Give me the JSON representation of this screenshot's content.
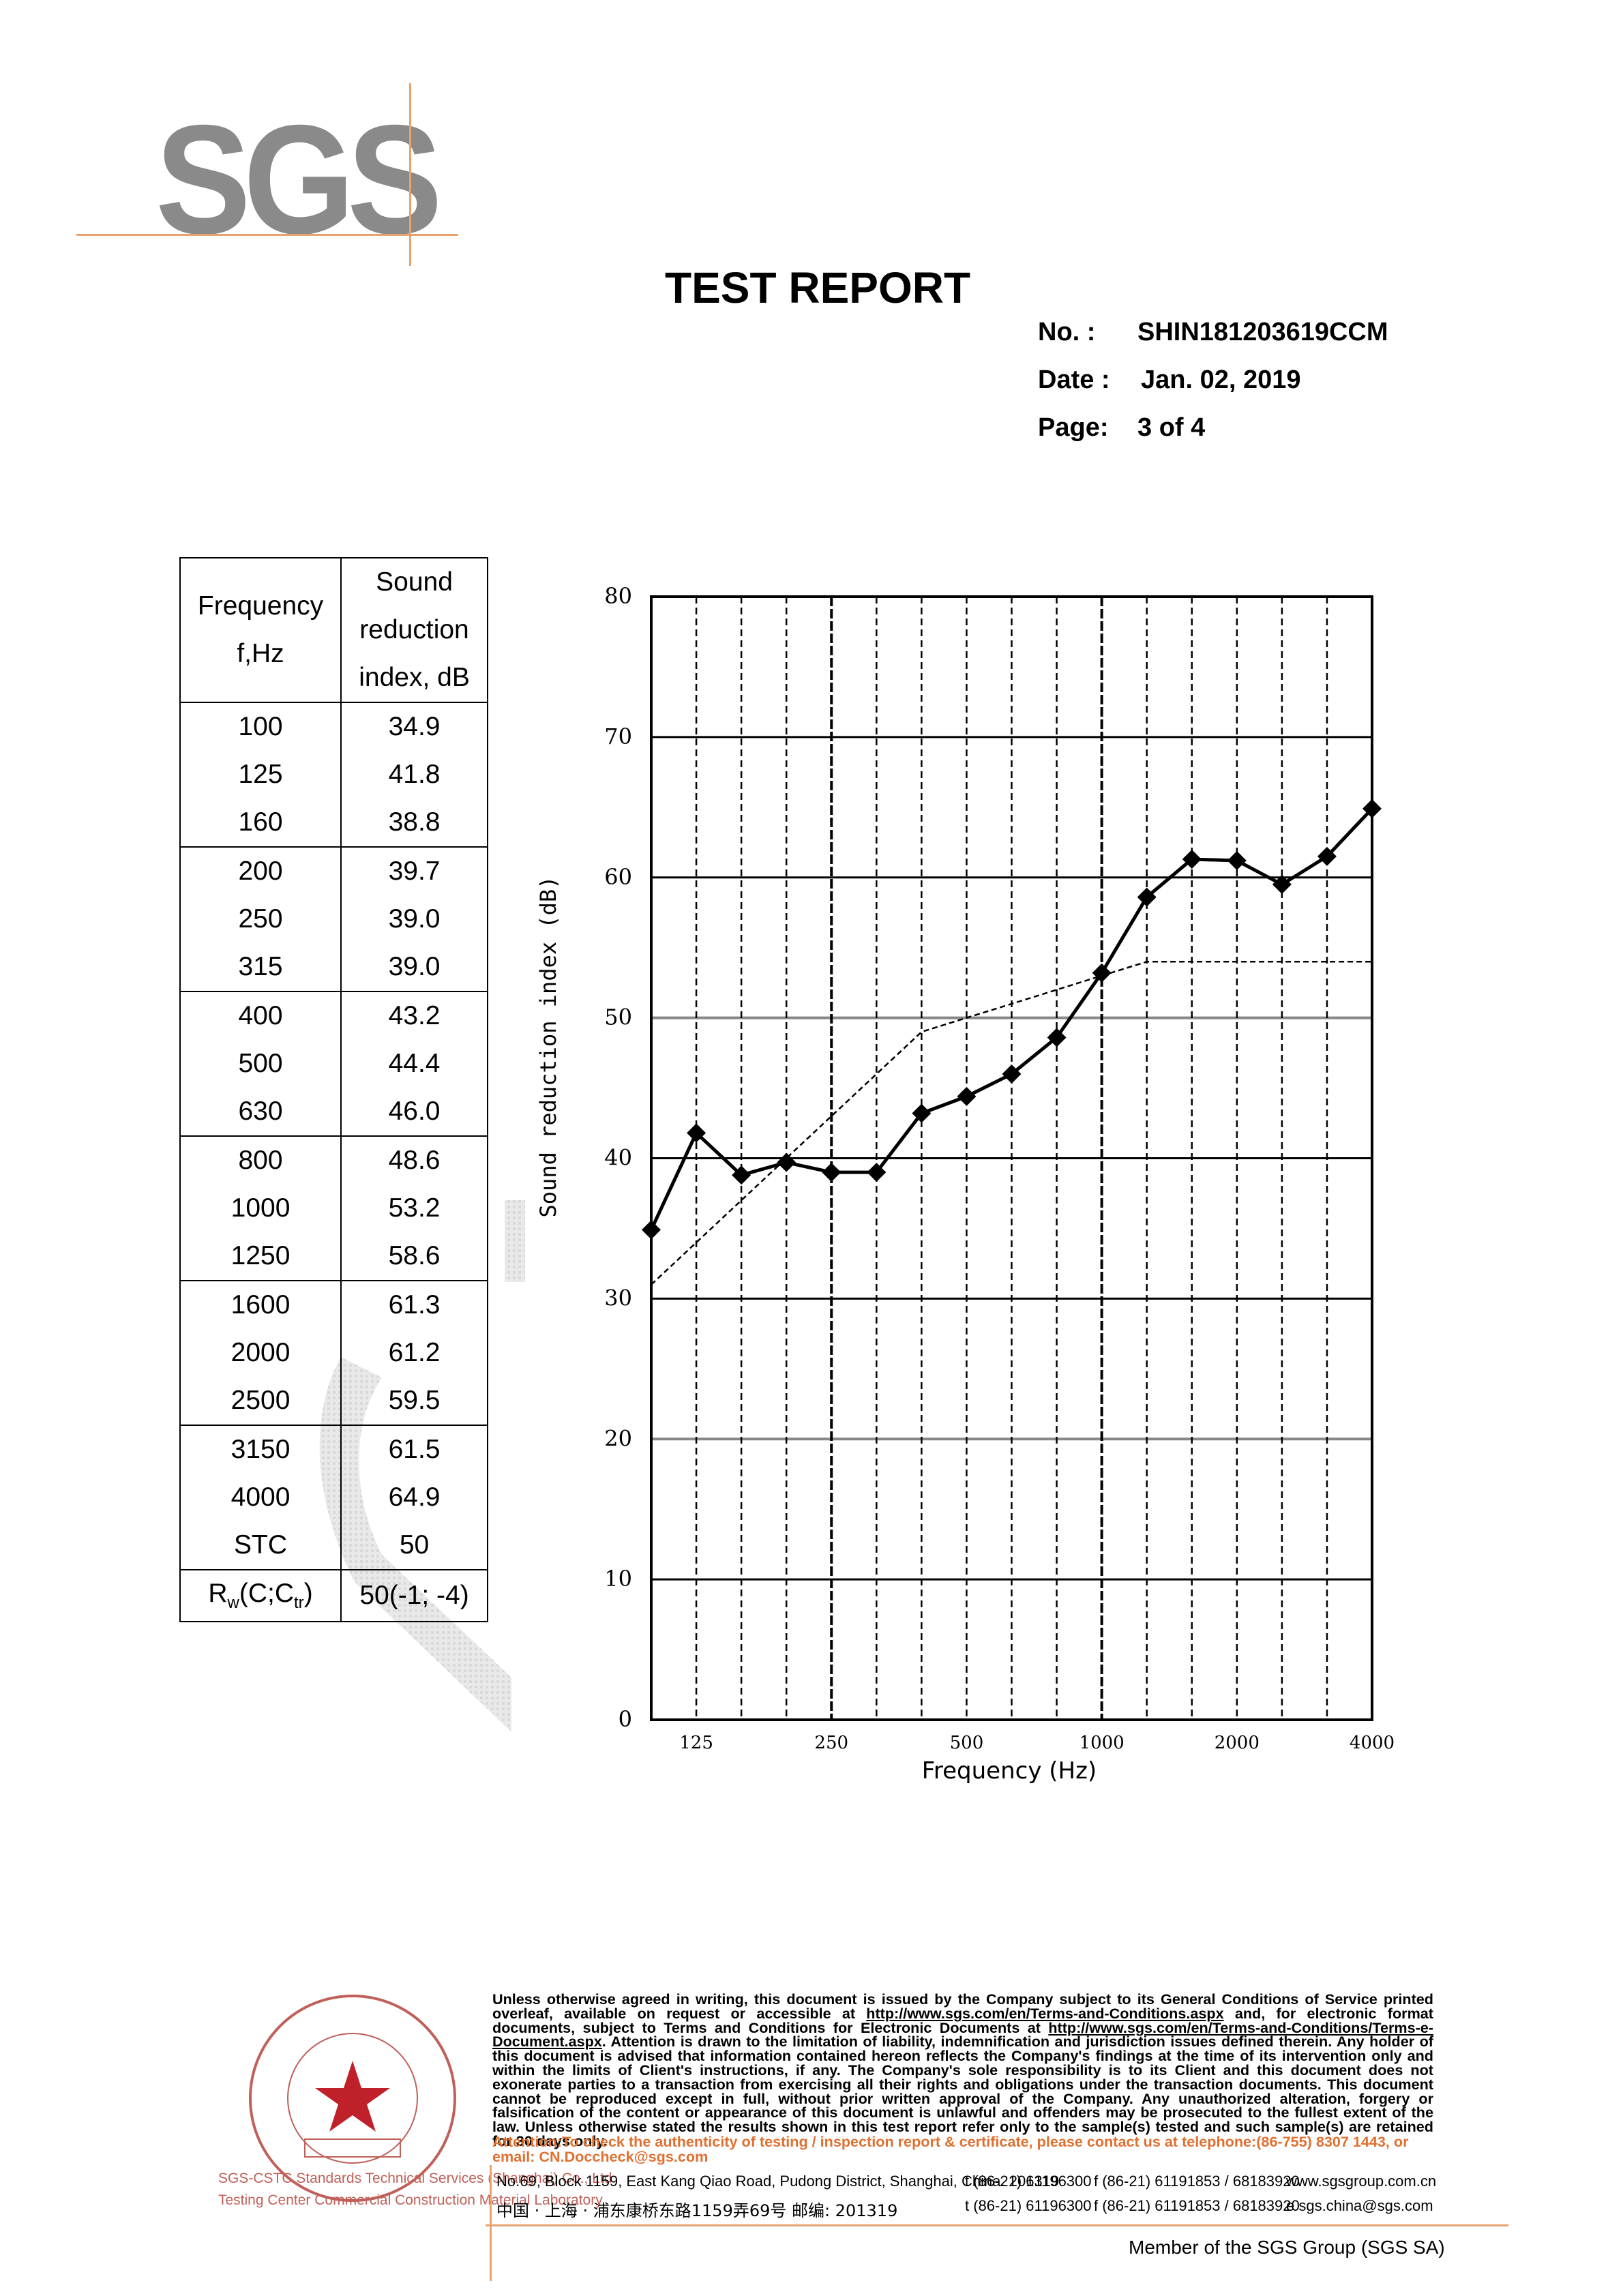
{
  "logo": {
    "text": "SGS"
  },
  "header": {
    "title": "TEST REPORT",
    "no_label": "No.   :",
    "no_value": "SHIN181203619CCM",
    "date_label": "Date :",
    "date_value": "Jan. 02, 2019",
    "page_label": "Page:",
    "page_value": "3 of  4"
  },
  "table": {
    "header_freq_lines": [
      "Frequency",
      "f,Hz"
    ],
    "header_val_lines": [
      "Sound",
      "reduction",
      "index, dB"
    ],
    "groups": [
      {
        "freq": [
          "100",
          "125",
          "160"
        ],
        "val": [
          "34.9",
          "41.8",
          "38.8"
        ]
      },
      {
        "freq": [
          "200",
          "250",
          "315"
        ],
        "val": [
          "39.7",
          "39.0",
          "39.0"
        ]
      },
      {
        "freq": [
          "400",
          "500",
          "630"
        ],
        "val": [
          "43.2",
          "44.4",
          "46.0"
        ]
      },
      {
        "freq": [
          "800",
          "1000",
          "1250"
        ],
        "val": [
          "48.6",
          "53.2",
          "58.6"
        ]
      },
      {
        "freq": [
          "1600",
          "2000",
          "2500"
        ],
        "val": [
          "61.3",
          "61.2",
          "59.5"
        ]
      },
      {
        "freq": [
          "3150",
          "4000",
          "STC"
        ],
        "val": [
          "61.5",
          "64.9",
          "50"
        ]
      }
    ],
    "rw_label_main": "R",
    "rw_label_sub1": "w",
    "rw_label_mid": "(C;C",
    "rw_label_sub2": "tr",
    "rw_label_end": ")",
    "rw_value": "50(-1; -4)"
  },
  "chart_data": {
    "type": "line",
    "xlabel": "Frequency (Hz)",
    "ylabel": "Sound reduction index (dB)",
    "ylim": [
      0,
      80
    ],
    "yticks": [
      0,
      10,
      20,
      30,
      40,
      50,
      60,
      70,
      80
    ],
    "x_tick_labels": [
      "125",
      "250",
      "500",
      "1000",
      "2000",
      "4000"
    ],
    "x": [
      100,
      125,
      160,
      200,
      250,
      315,
      400,
      500,
      630,
      800,
      1000,
      1250,
      1600,
      2000,
      2500,
      3150,
      4000
    ],
    "series": [
      {
        "values": [
          34.9,
          41.8,
          38.8,
          39.7,
          39.0,
          39.0,
          43.2,
          44.4,
          46.0,
          48.6,
          53.2,
          58.6,
          61.3,
          61.2,
          59.5,
          61.5,
          64.9
        ]
      },
      {
        "values": [
          31,
          34,
          37,
          40,
          43,
          46,
          49,
          50,
          51,
          52,
          53,
          54,
          54,
          54,
          54,
          54,
          54
        ]
      }
    ],
    "grid": true,
    "colors": {
      "line": "#000000"
    }
  },
  "footer": {
    "terms_1": "Unless otherwise agreed in writing, this document is issued by the Company subject to its General Conditions of Service printed overleaf, available on request or accessible at ",
    "terms_link_1": "http://www.sgs.com/en/Terms-and-Conditions.aspx",
    "terms_2": " and, for electronic format documents, subject to Terms and Conditions for Electronic Documents at ",
    "terms_link_2": "http://www.sgs.com/en/Terms-and-Conditions/Terms-e-Document.aspx",
    "terms_3": ". Attention is drawn to the limitation of liability, indemnification and jurisdiction issues defined therein. Any holder of this document is advised that information contained hereon reflects the Company's findings at the time of its intervention only and within the limits of Client's instructions, if any. The Company's sole responsibility is to its Client and this document does not exonerate parties to a transaction from exercising all their rights and obligations under the transaction documents. This document cannot be reproduced except in full, without prior written approval of the Company. Any unauthorized alteration, forgery or falsification of the content or appearance of this document is unlawful and offenders may be prosecuted to the fullest extent of the law. Unless otherwise stated the results shown in this test report refer only to the sample(s) tested and such sample(s) are retained for 30 days only.",
    "attention": "Attention:To check the authenticity of testing / inspection report & certificate, please contact us at telephone:(86-755) 8307 1443, or email: CN.Doccheck@sgs.com",
    "address_en": "No.69, Block 1159, East Kang Qiao Road, Pudong District, Shanghai, China. 201319",
    "address_cn": "中国 · 上海 · 浦东康桥东路1159弄69号   邮编: 201319",
    "tel_1": "t (86-21) 61196300",
    "tel_2": "t (86-21) 61196300",
    "fax_1": "f (86-21) 61191853 / 68183920",
    "fax_2": "f (86-21) 61191853 / 68183920",
    "web": "www.sgsgroup.com.cn",
    "email": "e  sgs.china@sgs.com",
    "member": "Member of the SGS Group (SGS SA)",
    "seal_caption_1": "SGS-CSTC Standards Technical Services (Shanghai) Co., Ltd.",
    "seal_caption_2": "Testing Center Commercial Construction Material Laboratory"
  }
}
